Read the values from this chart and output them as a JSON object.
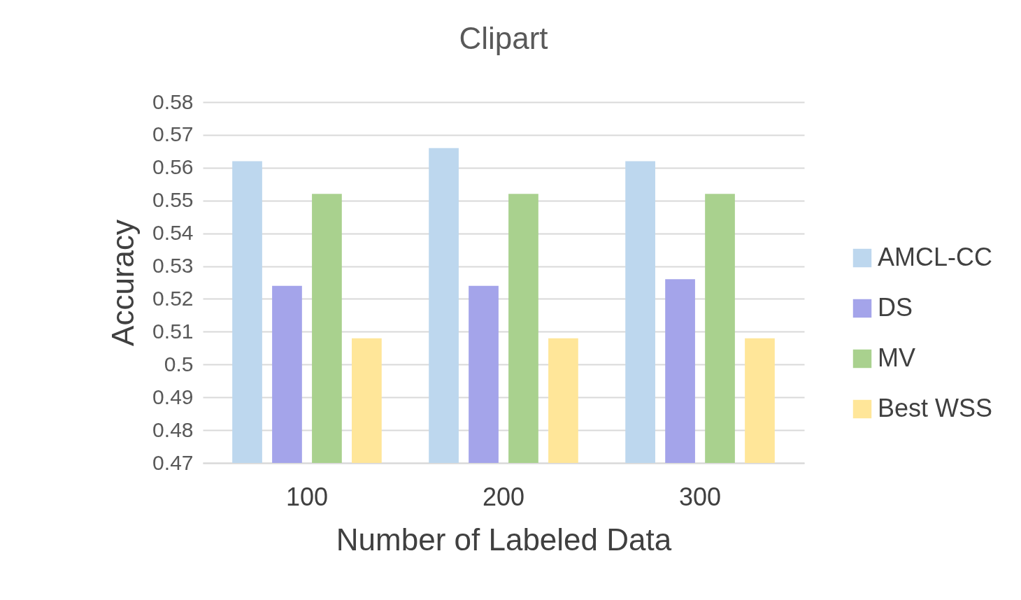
{
  "chart_data": {
    "type": "bar",
    "title": "Clipart",
    "xlabel": "Number of Labeled Data",
    "ylabel": "Accuracy",
    "categories": [
      "100",
      "200",
      "300"
    ],
    "series": [
      {
        "name": "AMCL-CC",
        "color": "#bdd7ee",
        "values": [
          0.562,
          0.566,
          0.562
        ]
      },
      {
        "name": "DS",
        "color": "#a4a4ea",
        "values": [
          0.524,
          0.524,
          0.526
        ]
      },
      {
        "name": "MV",
        "color": "#a9d18e",
        "values": [
          0.552,
          0.552,
          0.552
        ]
      },
      {
        "name": "Best WSS",
        "color": "#ffe699",
        "values": [
          0.508,
          0.508,
          0.508
        ]
      }
    ],
    "ylim": [
      0.47,
      0.58
    ],
    "yticks": [
      0.47,
      0.48,
      0.49,
      0.5,
      0.51,
      0.52,
      0.53,
      0.54,
      0.55,
      0.56,
      0.57,
      0.58
    ],
    "grid": "y",
    "legend": "right"
  }
}
